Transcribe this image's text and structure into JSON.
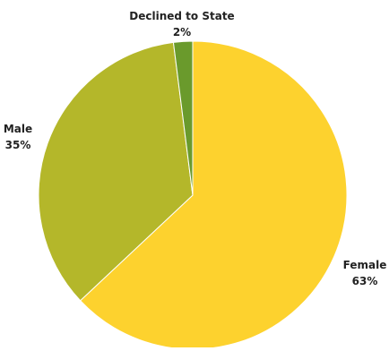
{
  "chart_data": {
    "type": "pie",
    "slices": [
      {
        "label": "Female",
        "value": 63,
        "display": "63%",
        "color": "#FDD22E"
      },
      {
        "label": "Male",
        "value": 35,
        "display": "35%",
        "color": "#B4B72A"
      },
      {
        "label": "Declined to State",
        "value": 2,
        "display": "2%",
        "color": "#6A9A2C"
      }
    ],
    "start_angle_deg": 0,
    "direction": "clockwise",
    "legend": "none"
  }
}
